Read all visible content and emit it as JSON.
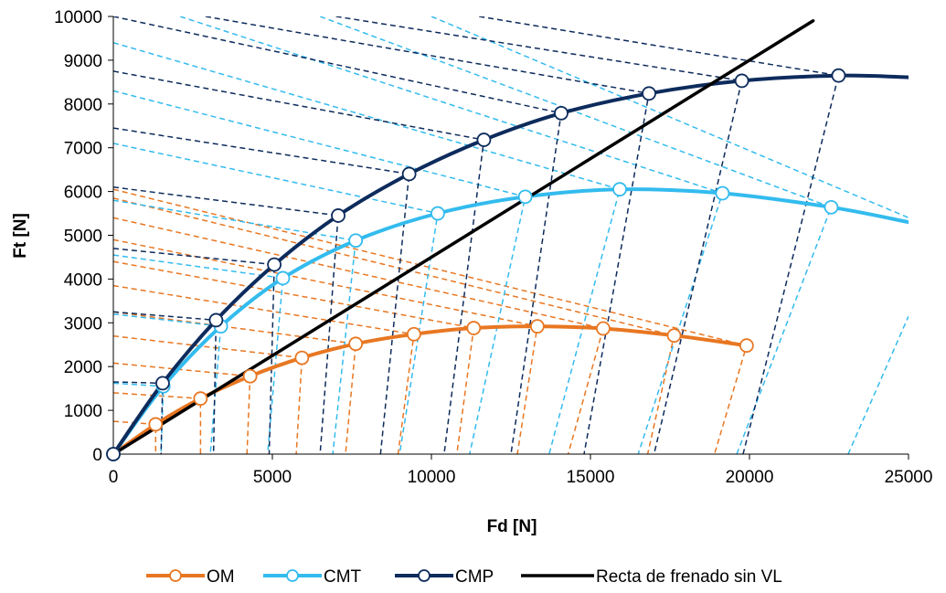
{
  "chart_data": {
    "type": "line",
    "xlabel": "Fd [N]",
    "ylabel": "Ft [N]",
    "xlim": [
      0,
      25000
    ],
    "ylim": [
      0,
      10000
    ],
    "xticks": [
      0,
      5000,
      10000,
      15000,
      20000,
      25000
    ],
    "yticks": [
      0,
      1000,
      2000,
      3000,
      4000,
      5000,
      6000,
      7000,
      8000,
      9000,
      10000
    ],
    "grid": false,
    "legend_position": "bottom",
    "series": [
      {
        "name": "OM",
        "color": "#e87722",
        "marker": "circle",
        "points": [
          [
            0,
            0
          ],
          [
            1330,
            680
          ],
          [
            2740,
            1270
          ],
          [
            4300,
            1780
          ],
          [
            5930,
            2200
          ],
          [
            7620,
            2520
          ],
          [
            9450,
            2740
          ],
          [
            11330,
            2880
          ],
          [
            13330,
            2920
          ],
          [
            15400,
            2870
          ],
          [
            17630,
            2710
          ],
          [
            19910,
            2480
          ]
        ]
      },
      {
        "name": "CMT",
        "color": "#33bbee",
        "marker": "circle",
        "points": [
          [
            0,
            0
          ],
          [
            1570,
            1550
          ],
          [
            3380,
            2920
          ],
          [
            5330,
            4020
          ],
          [
            7620,
            4880
          ],
          [
            10200,
            5500
          ],
          [
            12950,
            5880
          ],
          [
            15920,
            6050
          ],
          [
            19150,
            5960
          ],
          [
            22570,
            5640
          ],
          [
            25000,
            5300
          ]
        ]
      },
      {
        "name": "CMP",
        "color": "#0d2b5c",
        "marker": "circle",
        "points": [
          [
            0,
            0
          ],
          [
            1550,
            1620
          ],
          [
            3230,
            3060
          ],
          [
            5060,
            4330
          ],
          [
            7070,
            5450
          ],
          [
            9300,
            6400
          ],
          [
            11650,
            7180
          ],
          [
            14080,
            7790
          ],
          [
            16840,
            8240
          ],
          [
            19760,
            8530
          ],
          [
            22800,
            8650
          ],
          [
            25000,
            8610
          ]
        ]
      },
      {
        "name": "Recta de frenado sin VL",
        "color": "#000000",
        "marker": "none",
        "points": [
          [
            0,
            0
          ],
          [
            22000,
            9900
          ]
        ]
      }
    ],
    "auxiliary_lines": {
      "OM": {
        "color": "#e87722",
        "segments": [
          [
            [
              0,
              750
            ],
            [
              1330,
              680
            ],
            [
              1330,
              0
            ]
          ],
          [
            [
              0,
              1400
            ],
            [
              2740,
              1270
            ],
            [
              2740,
              0
            ]
          ],
          [
            [
              0,
              2080
            ],
            [
              4300,
              1780
            ],
            [
              4200,
              0
            ]
          ],
          [
            [
              0,
              2700
            ],
            [
              5930,
              2200
            ],
            [
              5750,
              0
            ]
          ],
          [
            [
              0,
              3250
            ],
            [
              7620,
              2520
            ],
            [
              7300,
              0
            ]
          ],
          [
            [
              0,
              3850
            ],
            [
              9450,
              2740
            ],
            [
              8950,
              0
            ]
          ],
          [
            [
              0,
              4400
            ],
            [
              11330,
              2880
            ],
            [
              10800,
              0
            ]
          ],
          [
            [
              0,
              4900
            ],
            [
              13330,
              2920
            ],
            [
              12700,
              0
            ]
          ],
          [
            [
              0,
              5400
            ],
            [
              15400,
              2870
            ],
            [
              14300,
              0
            ]
          ],
          [
            [
              0,
              5850
            ],
            [
              17630,
              2710
            ],
            [
              16800,
              0
            ]
          ],
          [
            [
              0,
              6050
            ],
            [
              19910,
              2480
            ],
            [
              18900,
              0
            ]
          ]
        ]
      },
      "CMT": {
        "color": "#33bbee",
        "segments": [
          [
            [
              0,
              1620
            ],
            [
              1570,
              1550
            ],
            [
              1500,
              0
            ]
          ],
          [
            [
              0,
              3200
            ],
            [
              3380,
              2920
            ],
            [
              3050,
              0
            ]
          ],
          [
            [
              0,
              4550
            ],
            [
              5330,
              4020
            ],
            [
              4850,
              0
            ]
          ],
          [
            [
              0,
              5800
            ],
            [
              7620,
              4880
            ],
            [
              6900,
              0
            ]
          ],
          [
            [
              0,
              7100
            ],
            [
              10200,
              5500
            ],
            [
              9000,
              0
            ]
          ],
          [
            [
              0,
              8300
            ],
            [
              12950,
              5880
            ],
            [
              11200,
              0
            ]
          ],
          [
            [
              0,
              9400
            ],
            [
              15920,
              6050
            ],
            [
              13700,
              0
            ]
          ],
          [
            [
              2100,
              10000
            ],
            [
              19150,
              5960
            ],
            [
              16500,
              0
            ]
          ],
          [
            [
              6500,
              10000
            ],
            [
              22570,
              5640
            ],
            [
              19600,
              0
            ]
          ],
          [
            [
              10000,
              10000
            ],
            [
              25000,
              5400
            ]
          ],
          [
            [
              23100,
              0
            ],
            [
              25000,
              3150
            ]
          ]
        ]
      },
      "CMP": {
        "color": "#0d2b5c",
        "segments": [
          [
            [
              0,
              1650
            ],
            [
              1550,
              1620
            ],
            [
              1500,
              0
            ]
          ],
          [
            [
              0,
              3250
            ],
            [
              3230,
              3060
            ],
            [
              3150,
              0
            ]
          ],
          [
            [
              0,
              4700
            ],
            [
              5060,
              4330
            ],
            [
              4900,
              0
            ]
          ],
          [
            [
              0,
              6100
            ],
            [
              7070,
              5450
            ],
            [
              6500,
              0
            ]
          ],
          [
            [
              0,
              7450
            ],
            [
              9300,
              6400
            ],
            [
              8400,
              0
            ]
          ],
          [
            [
              0,
              8750
            ],
            [
              11650,
              7180
            ],
            [
              10400,
              0
            ]
          ],
          [
            [
              0,
              10000
            ],
            [
              14080,
              7790
            ],
            [
              12500,
              0
            ]
          ],
          [
            [
              2900,
              10000
            ],
            [
              16840,
              8240
            ],
            [
              14800,
              0
            ]
          ],
          [
            [
              7000,
              10000
            ],
            [
              19760,
              8530
            ],
            [
              17000,
              0
            ]
          ],
          [
            [
              11500,
              10000
            ],
            [
              22800,
              8650
            ],
            [
              19800,
              0
            ]
          ]
        ]
      }
    }
  }
}
